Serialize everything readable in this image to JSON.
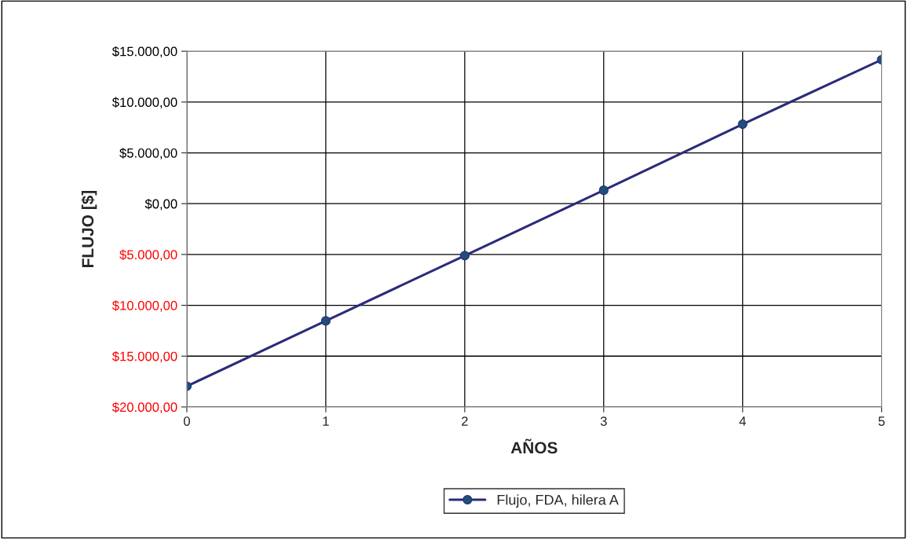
{
  "chart_data": {
    "type": "line",
    "xlabel": "AÑOS",
    "ylabel": "FLUJO [$]",
    "x": [
      0,
      1,
      2,
      3,
      4,
      5
    ],
    "series": [
      {
        "name": "Flujo, FDA, hilera A",
        "color": "#2b2b7a",
        "values": [
          -17960,
          -11530,
          -5110,
          1320,
          7820,
          14160
        ]
      }
    ],
    "xlim": [
      0,
      5
    ],
    "xticks": [
      0,
      1,
      2,
      3,
      4,
      5
    ],
    "ylim": [
      -20000,
      15000
    ],
    "yticks": [
      {
        "value": -20000,
        "label": "$20.000,00"
      },
      {
        "value": -15000,
        "label": "$15.000,00"
      },
      {
        "value": -10000,
        "label": "$10.000,00"
      },
      {
        "value": -5000,
        "label": "$5.000,00"
      },
      {
        "value": 0,
        "label": "$0,00"
      },
      {
        "value": 5000,
        "label": "$5.000,00"
      },
      {
        "value": 10000,
        "label": "$10.000,00"
      },
      {
        "value": 15000,
        "label": "$15.000,00"
      }
    ],
    "grid": true,
    "legend": "bottom",
    "marker": "circle",
    "line_style": "solid"
  }
}
